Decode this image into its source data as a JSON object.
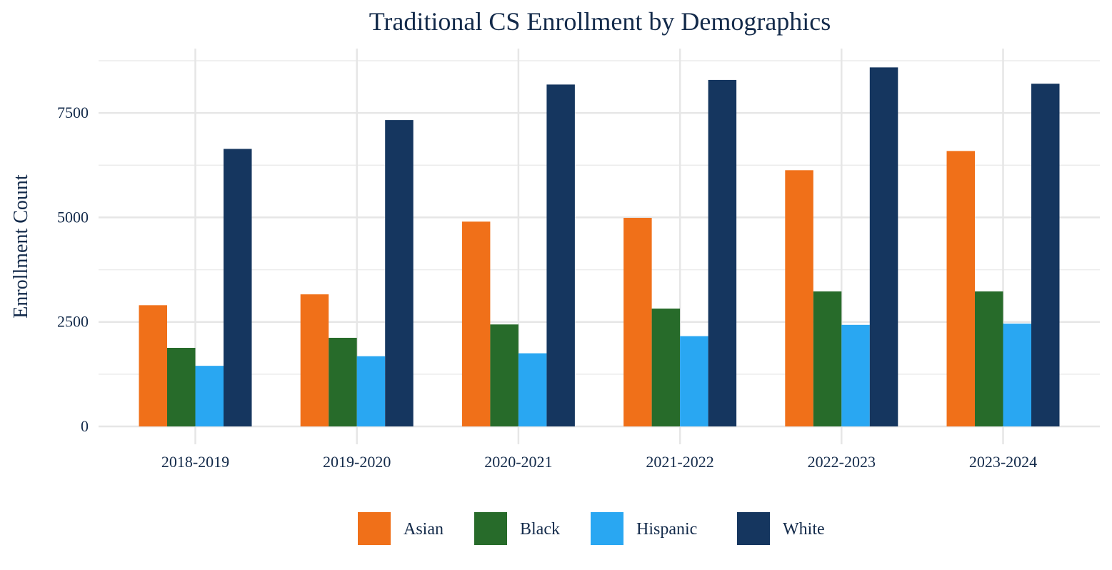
{
  "chart_data": {
    "type": "bar",
    "title": "Traditional CS Enrollment by Demographics",
    "xlabel": "",
    "ylabel": "Enrollment Count",
    "categories": [
      "2018-2019",
      "2019-2020",
      "2020-2021",
      "2021-2022",
      "2022-2023",
      "2023-2024"
    ],
    "series": [
      {
        "name": "Asian",
        "color": "#f07019",
        "values": [
          2900,
          3160,
          4900,
          4990,
          6130,
          6590
        ]
      },
      {
        "name": "Black",
        "color": "#276b2a",
        "values": [
          1880,
          2120,
          2440,
          2820,
          3230,
          3230
        ]
      },
      {
        "name": "Hispanic",
        "color": "#29a7f2",
        "values": [
          1450,
          1680,
          1750,
          2160,
          2430,
          2460
        ]
      },
      {
        "name": "White",
        "color": "#15365f",
        "values": [
          6640,
          7330,
          8180,
          8290,
          8590,
          8200
        ]
      }
    ],
    "ylim": [
      0,
      8750
    ],
    "yticks": [
      0,
      2500,
      5000,
      7500
    ],
    "ytick_labels": [
      "0",
      "2500",
      "5000",
      "7500"
    ],
    "grid": true,
    "legend_position": "bottom"
  }
}
